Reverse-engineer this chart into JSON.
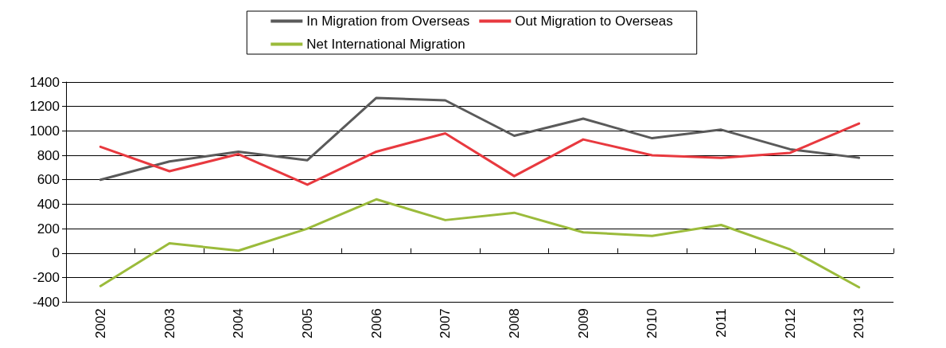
{
  "chart_data": {
    "type": "line",
    "categories": [
      "2002",
      "2003",
      "2004",
      "2005",
      "2006",
      "2007",
      "2008",
      "2009",
      "2010",
      "2011",
      "2012",
      "2013"
    ],
    "series": [
      {
        "name": "In Migration from Overseas",
        "color": "#5a5a5a",
        "values": [
          600,
          750,
          830,
          760,
          1270,
          1250,
          960,
          1100,
          940,
          1010,
          850,
          780
        ]
      },
      {
        "name": "Out Migration to Overseas",
        "color": "#e8393f",
        "values": [
          870,
          670,
          810,
          560,
          830,
          980,
          630,
          930,
          800,
          780,
          820,
          1060
        ]
      },
      {
        "name": "Net International Migration",
        "color": "#9bbb3b",
        "values": [
          -270,
          80,
          20,
          200,
          440,
          270,
          330,
          170,
          140,
          230,
          30,
          -280
        ]
      }
    ],
    "ylim": [
      -400,
      1400
    ],
    "yticks": [
      -400,
      -200,
      0,
      200,
      400,
      600,
      800,
      1000,
      1200,
      1400
    ],
    "grid": "y",
    "legend": "top",
    "marker": "none",
    "line_style": "solid"
  }
}
